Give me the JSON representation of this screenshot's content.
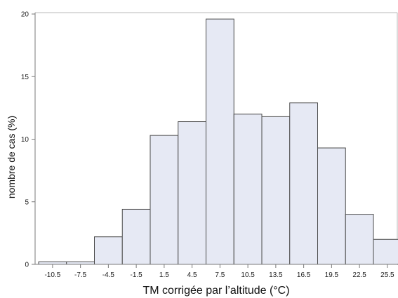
{
  "chart_data": {
    "type": "bar",
    "categories": [
      "-10.5",
      "-7.5",
      "-4.5",
      "-1.5",
      "1.5",
      "4.5",
      "7.5",
      "10.5",
      "13.5",
      "16.5",
      "19.5",
      "22.5",
      "25.5"
    ],
    "values": [
      0.2,
      0.2,
      2.2,
      4.4,
      10.3,
      11.4,
      19.6,
      12.0,
      11.8,
      12.9,
      9.3,
      4.0,
      2.0
    ],
    "title": "",
    "xlabel": "TM corrigée par l’altitude (°C)",
    "ylabel": "nombre de cas (%)",
    "ylim": [
      0,
      20
    ],
    "yticks": [
      "0",
      "5",
      "10",
      "15",
      "20"
    ],
    "grid": false,
    "colors": {
      "bar_fill": "#e6e9f4",
      "bar_stroke": "#4a4a4a",
      "axis": "#7a7a7a"
    }
  }
}
